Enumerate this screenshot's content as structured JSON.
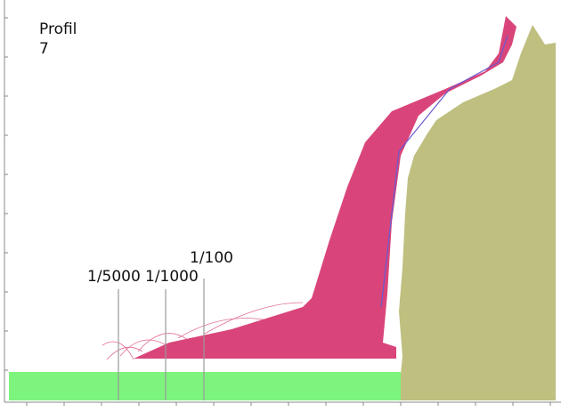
{
  "title_lines": [
    "Profil",
    "7"
  ],
  "annotations": [
    "1/5000",
    "1/1000",
    "1/100"
  ]
}
